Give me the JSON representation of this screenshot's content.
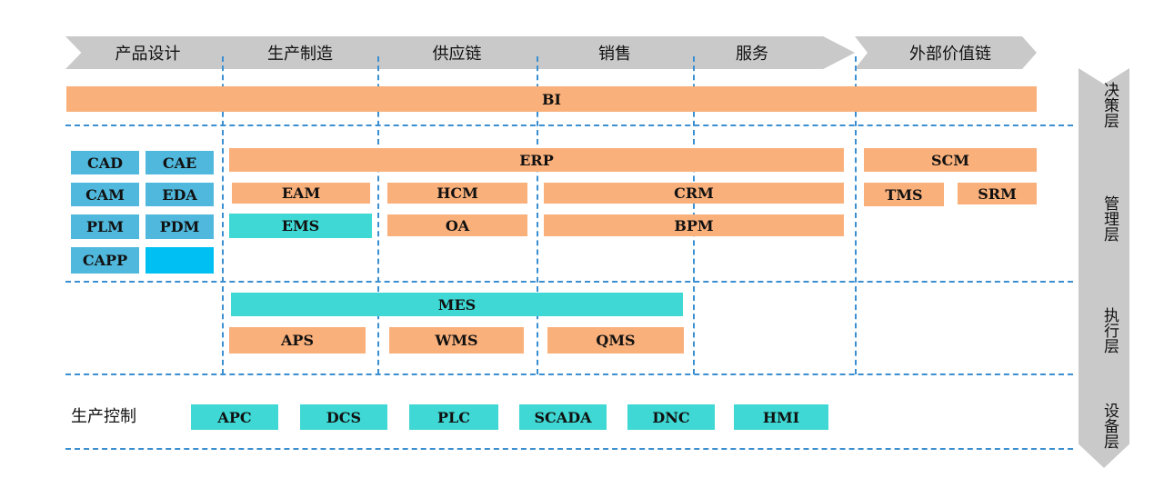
{
  "stages": [
    "产品设计",
    "生产制造",
    "供应链",
    "销售",
    "服务",
    "外部价值链"
  ],
  "layers": [
    "决策层",
    "管理层",
    "执行层",
    "设备层"
  ],
  "decision": {
    "bi": "BI"
  },
  "management": {
    "design_modules": [
      "CAD",
      "CAE",
      "CAM",
      "EDA",
      "PLM",
      "PDM",
      "CAPP"
    ],
    "erp": "ERP",
    "eam": "EAM",
    "hcm": "HCM",
    "crm": "CRM",
    "ems": "EMS",
    "oa": "OA",
    "bpm": "BPM",
    "scm": "SCM",
    "tms": "TMS",
    "srm": "SRM"
  },
  "execution": {
    "mes": "MES",
    "aps": "APS",
    "wms": "WMS",
    "qms": "QMS"
  },
  "equipment": {
    "label": "生产控制",
    "modules": [
      "APC",
      "DCS",
      "PLC",
      "SCADA",
      "DNC",
      "HMI"
    ]
  },
  "colors": {
    "orange": "#f9b07b",
    "teal": "#3fd8d4",
    "blue": "#4fb8dc",
    "bright_blue": "#00bff2",
    "arrow_gray": "#c9c9c9",
    "dash_blue": "#3b8fd0"
  }
}
